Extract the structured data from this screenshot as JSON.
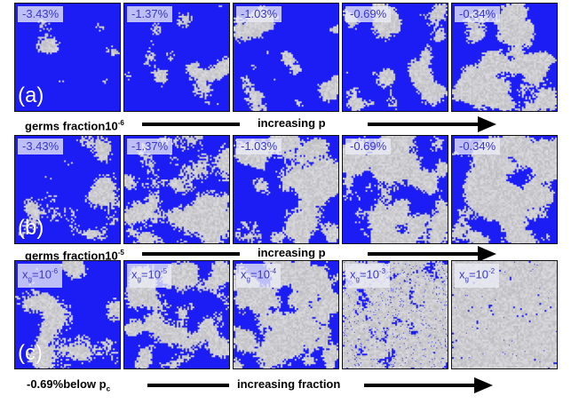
{
  "row_a": {
    "letter": "(a)",
    "panels": [
      "-3.43%",
      "-1.37%",
      "-1.03%",
      "-0.69%",
      "-0.34%"
    ],
    "caption_left": "germs fraction10",
    "caption_left_exp": "-6",
    "caption_middle": "increasing p"
  },
  "row_b": {
    "letter": "(b)",
    "panels": [
      "-3.43%",
      "-1.37%",
      "-1.03%",
      "-0.69%",
      "-0.34%"
    ],
    "caption_left": "germs fraction10",
    "caption_left_exp": "-5",
    "caption_middle": "increasing p"
  },
  "row_c": {
    "letter": "(c)",
    "panels": [
      {
        "prefix": "x",
        "sub": "g",
        "eq": "=10",
        "exp": "-6"
      },
      {
        "prefix": "x",
        "sub": "g",
        "eq": "=10",
        "exp": "-5"
      },
      {
        "prefix": "x",
        "sub": "g",
        "eq": "=10",
        "exp": "-4"
      },
      {
        "prefix": "x",
        "sub": "g",
        "eq": "=10",
        "exp": "-3"
      },
      {
        "prefix": "x",
        "sub": "g",
        "eq": "=10",
        "exp": "-2"
      }
    ],
    "caption_left": "-0.69%below p",
    "caption_left_sub": "c",
    "caption_middle": "increasing fraction"
  },
  "colors": {
    "background_blue": "#1c1cf5",
    "cluster_gray": "#c8c8cc",
    "badge_text": "#3838c8"
  },
  "row_a_coverage": [
    0.04,
    0.12,
    0.18,
    0.28,
    0.55
  ],
  "row_b_coverage": [
    0.18,
    0.45,
    0.52,
    0.6,
    0.68
  ],
  "row_c_coverage": [
    0.3,
    0.5,
    0.72,
    0.93,
    0.99
  ]
}
